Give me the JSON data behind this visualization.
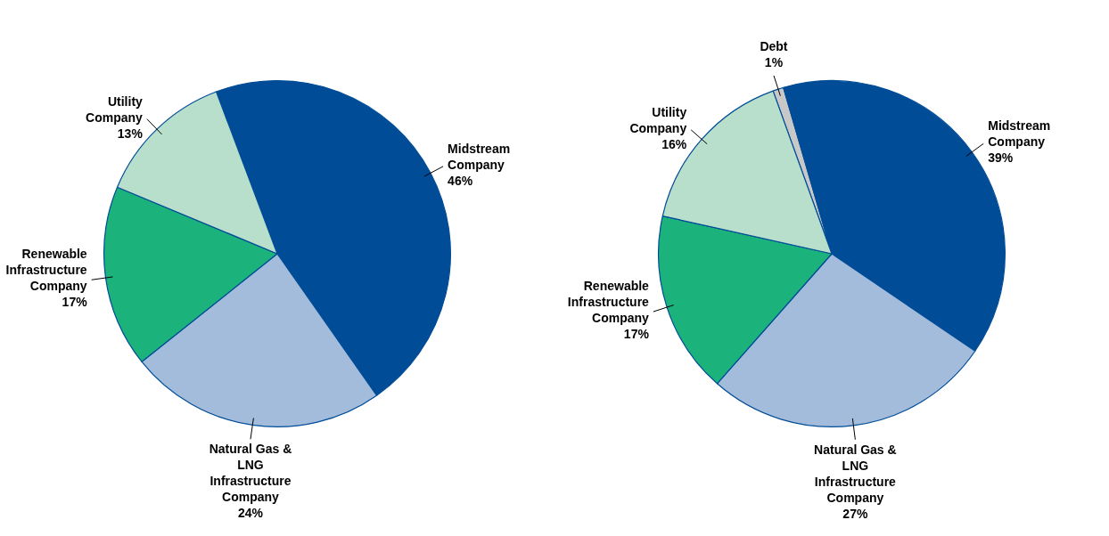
{
  "chart_data": [
    {
      "type": "pie",
      "categories": [
        "Midstream Company",
        "Natural Gas & LNG Infrastructure Company",
        "Renewable Infrastructure Company",
        "Utility Company"
      ],
      "values": [
        46,
        24,
        17,
        13
      ],
      "value_labels": [
        "46%",
        "24%",
        "17%",
        "13%"
      ],
      "colors": [
        "#004c97",
        "#a3bcdc",
        "#1bb37b",
        "#b8dfcb"
      ],
      "legend": false
    },
    {
      "type": "pie",
      "categories": [
        "Debt",
        "Midstream Company",
        "Natural Gas & LNG Infrastructure Company",
        "Renewable Infrastructure Company",
        "Utility Company"
      ],
      "values": [
        1,
        39,
        27,
        17,
        16
      ],
      "value_labels": [
        "1%",
        "39%",
        "27%",
        "17%",
        "16%"
      ],
      "colors": [
        "#c8c8c8",
        "#004c97",
        "#a3bcdc",
        "#1bb37b",
        "#b8dfcb"
      ],
      "legend": false
    }
  ]
}
